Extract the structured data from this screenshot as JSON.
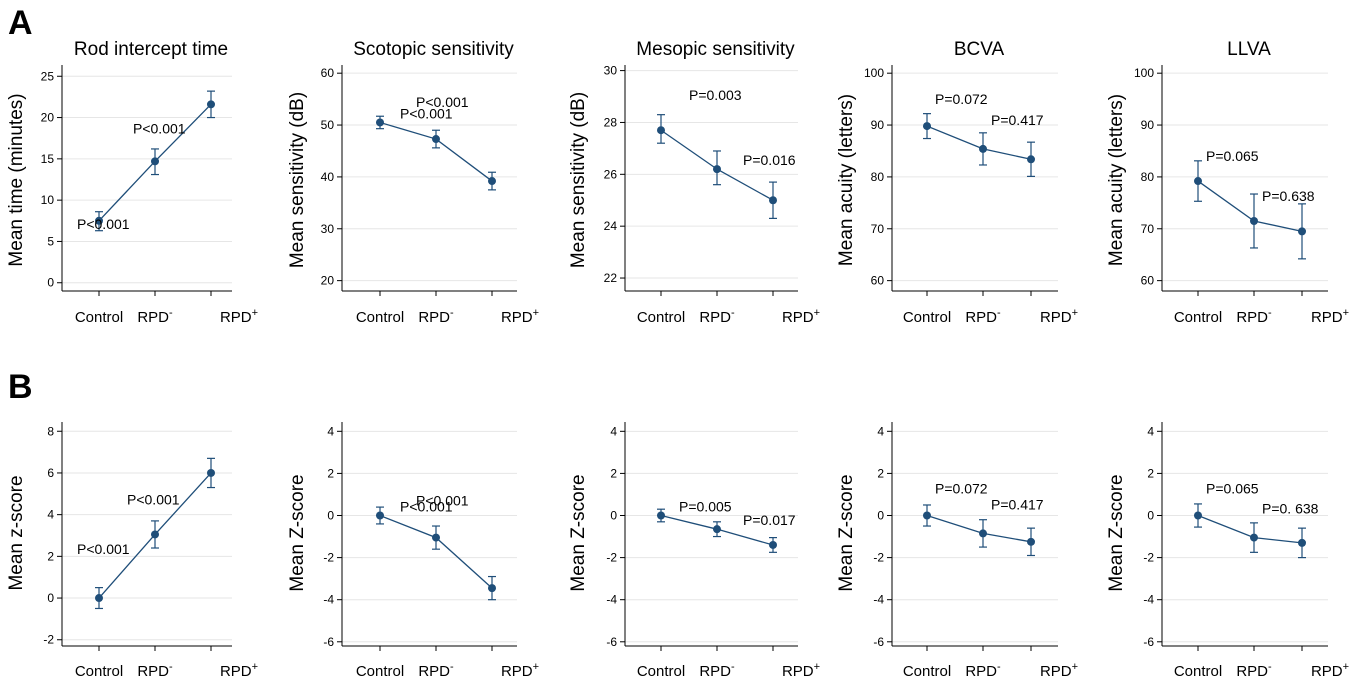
{
  "panel_labels": [
    "A",
    "B"
  ],
  "colors": {
    "series": "#1f4e79",
    "grid": "#e6e6e6",
    "axis": "#000000"
  },
  "chart_data": [
    {
      "type": "line",
      "panel": "A",
      "title": "Rod intercept time",
      "ylabel": "Mean time (minutes)",
      "xlabel": "",
      "categories": [
        "Control",
        "RPD-",
        "RPD+"
      ],
      "values": [
        7.5,
        14.7,
        21.6
      ],
      "error_low": [
        6.3,
        13.1,
        20.0
      ],
      "error_high": [
        8.6,
        16.2,
        23.2
      ],
      "ylim": [
        -1,
        26
      ],
      "yticks": [
        "0",
        "5",
        "10",
        "15",
        "20",
        "25"
      ],
      "annotations": [
        "P<0.001",
        "P<0.001"
      ],
      "grid": true
    },
    {
      "type": "line",
      "panel": "A",
      "title": "Scotopic sensitivity",
      "ylabel": "Mean sensitivity (dB)",
      "xlabel": "",
      "categories": [
        "Control",
        "RPD-",
        "RPD+"
      ],
      "values": [
        50.5,
        47.3,
        39.2
      ],
      "error_low": [
        49.3,
        45.6,
        37.5
      ],
      "error_high": [
        51.7,
        49.0,
        40.9
      ],
      "ylim": [
        18,
        61
      ],
      "yticks": [
        "20",
        "30",
        "40",
        "50",
        "60"
      ],
      "annotations": [
        "P<0.001",
        "P<0.001"
      ],
      "grid": true
    },
    {
      "type": "line",
      "panel": "A",
      "title": "Mesopic sensitivity",
      "ylabel": "Mean sensitivity (dB)",
      "xlabel": "",
      "categories": [
        "Control",
        "RPD-",
        "RPD+"
      ],
      "values": [
        27.7,
        26.2,
        25.0
      ],
      "error_low": [
        27.2,
        25.6,
        24.3
      ],
      "error_high": [
        28.3,
        26.9,
        25.7
      ],
      "ylim": [
        21.5,
        30.1
      ],
      "yticks": [
        "22",
        "24",
        "26",
        "28",
        "30"
      ],
      "annotations": [
        "P=0.003",
        "P=0.016"
      ],
      "grid": true
    },
    {
      "type": "line",
      "panel": "A",
      "title": "BCVA",
      "ylabel": "Mean acuity (letters)",
      "xlabel": "",
      "categories": [
        "Control",
        "RPD-",
        "RPD+"
      ],
      "values": [
        89.8,
        85.4,
        83.4
      ],
      "error_low": [
        87.4,
        82.3,
        80.1
      ],
      "error_high": [
        92.2,
        88.5,
        86.7
      ],
      "ylim": [
        58,
        101
      ],
      "yticks": [
        "60",
        "70",
        "80",
        "90",
        "100"
      ],
      "annotations": [
        "P=0.072",
        "P=0.417"
      ],
      "grid": true
    },
    {
      "type": "line",
      "panel": "A",
      "title": "LLVA",
      "ylabel": "Mean acuity (letters)",
      "xlabel": "",
      "categories": [
        "Control",
        "RPD-",
        "RPD+"
      ],
      "values": [
        79.2,
        71.5,
        69.5
      ],
      "error_low": [
        75.3,
        66.3,
        64.2
      ],
      "error_high": [
        83.1,
        76.7,
        74.8
      ],
      "ylim": [
        58,
        101
      ],
      "yticks": [
        "60",
        "70",
        "80",
        "90",
        "100"
      ],
      "annotations": [
        "P=0.065",
        "P=0.638"
      ],
      "grid": true
    },
    {
      "type": "line",
      "panel": "B",
      "title": "",
      "ylabel": "Mean z-score",
      "xlabel": "",
      "categories": [
        "Control",
        "RPD-",
        "RPD+"
      ],
      "values": [
        0.0,
        3.05,
        6.0
      ],
      "error_low": [
        -0.5,
        2.4,
        5.3
      ],
      "error_high": [
        0.5,
        3.7,
        6.7
      ],
      "ylim": [
        -2.3,
        8.3
      ],
      "yticks": [
        "-2",
        "0",
        "2",
        "4",
        "6",
        "8"
      ],
      "annotations": [
        "P<0.001",
        "P<0.001"
      ],
      "grid": true
    },
    {
      "type": "line",
      "panel": "B",
      "title": "",
      "ylabel": "Mean Z-score",
      "xlabel": "",
      "categories": [
        "Control",
        "RPD-",
        "RPD+"
      ],
      "values": [
        0.0,
        -1.05,
        -3.45
      ],
      "error_low": [
        -0.4,
        -1.6,
        -4.0
      ],
      "error_high": [
        0.4,
        -0.5,
        -2.9
      ],
      "ylim": [
        -6.2,
        4.3
      ],
      "yticks": [
        "-6",
        "-4",
        "-2",
        "0",
        "2",
        "4"
      ],
      "annotations": [
        "P<0.001",
        "P<0.001"
      ],
      "grid": true
    },
    {
      "type": "line",
      "panel": "B",
      "title": "",
      "ylabel": "Mean Z-score",
      "xlabel": "",
      "categories": [
        "Control",
        "RPD-",
        "RPD+"
      ],
      "values": [
        0.0,
        -0.65,
        -1.4
      ],
      "error_low": [
        -0.3,
        -1.0,
        -1.75
      ],
      "error_high": [
        0.3,
        -0.3,
        -1.05
      ],
      "ylim": [
        -6.2,
        4.3
      ],
      "yticks": [
        "-6",
        "-4",
        "-2",
        "0",
        "2",
        "4"
      ],
      "annotations": [
        "P=0.005",
        "P=0.017"
      ],
      "grid": true
    },
    {
      "type": "line",
      "panel": "B",
      "title": "",
      "ylabel": "Mean Z-score",
      "xlabel": "",
      "categories": [
        "Control",
        "RPD-",
        "RPD+"
      ],
      "values": [
        0.0,
        -0.85,
        -1.25
      ],
      "error_low": [
        -0.5,
        -1.5,
        -1.9
      ],
      "error_high": [
        0.5,
        -0.2,
        -0.6
      ],
      "ylim": [
        -6.2,
        4.3
      ],
      "yticks": [
        "-6",
        "-4",
        "-2",
        "0",
        "2",
        "4"
      ],
      "annotations": [
        "P=0.072",
        "P=0.417"
      ],
      "grid": true
    },
    {
      "type": "line",
      "panel": "B",
      "title": "",
      "ylabel": "Mean Z-score",
      "xlabel": "",
      "categories": [
        "Control",
        "RPD-",
        "RPD+"
      ],
      "values": [
        0.0,
        -1.05,
        -1.3
      ],
      "error_low": [
        -0.55,
        -1.75,
        -2.0
      ],
      "error_high": [
        0.55,
        -0.35,
        -0.6
      ],
      "ylim": [
        -6.2,
        4.3
      ],
      "yticks": [
        "-6",
        "-4",
        "-2",
        "0",
        "2",
        "4"
      ],
      "annotations": [
        "P=0.065",
        "P=0. 638"
      ],
      "grid": true
    }
  ]
}
